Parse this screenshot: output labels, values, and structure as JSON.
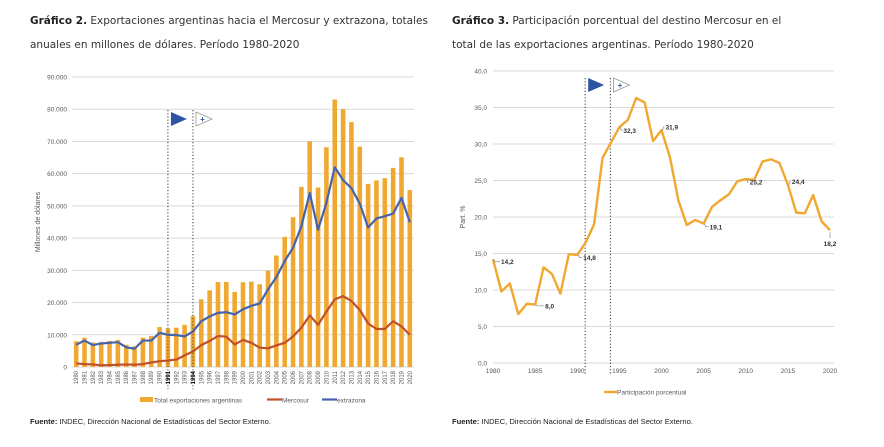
{
  "chart2": {
    "caption_bold": "Gráfico 2.",
    "caption_rest": " Exportaciones argentinas hacia el  Mercosur y extrazona, totales anuales en millones de dólares. Período 1980-2020",
    "source_bold": "Fuente:",
    "source_rest": " INDEC, Dirección Nacional de Estadísticas del Sector Externo.",
    "markers": [
      {
        "name": "mercosur-start-marker-1991",
        "year": 1991,
        "style": "filled-triangle",
        "color": "#2e55a5"
      },
      {
        "name": "mercosur-start-marker-1994",
        "year": 1994,
        "style": "outline-triangle-plus",
        "color": "#2e55a5"
      }
    ]
  },
  "chart3": {
    "caption_bold": "Gráfico 3.",
    "caption_rest": " Participación porcentual del destino Mercosur en el total de las exportaciones argentinas. Período 1980-2020",
    "source_bold": "Fuente:",
    "source_rest": " INDEC, Dirección Nacional de Estadísticas del Sector Externo.",
    "markers": [
      {
        "name": "mercosur-start-marker-1991",
        "year": 1991,
        "style": "filled-triangle",
        "color": "#2e55a5"
      },
      {
        "name": "mercosur-start-marker-1994",
        "year": 1994,
        "style": "outline-triangle-plus",
        "color": "#2e55a5"
      }
    ]
  },
  "chart_data": [
    {
      "type": "bar",
      "title": "Exportaciones argentinas hacia el Mercosur y extrazona, totales anuales en millones de dólares. Período 1980-2020",
      "xlabel": "",
      "ylabel": "Millones de dólares",
      "ylim": [
        0,
        90000
      ],
      "yticks": [
        0,
        10000,
        20000,
        30000,
        40000,
        50000,
        60000,
        70000,
        80000,
        90000
      ],
      "ytick_labels": [
        "0",
        "10.000",
        "20.000",
        "30.000",
        "40.000",
        "50.000",
        "60.000",
        "70.000",
        "80.000",
        "90.000"
      ],
      "grid": true,
      "legend_position": "bottom",
      "highlighted_categories": [
        "1991",
        "1994"
      ],
      "categories": [
        "1980",
        "1981",
        "1982",
        "1983",
        "1984",
        "1985",
        "1986",
        "1987",
        "1988",
        "1989",
        "1990",
        "1991",
        "1992",
        "1993",
        "1994",
        "1995",
        "1996",
        "1997",
        "1998",
        "1999",
        "2000",
        "2001",
        "2002",
        "2003",
        "2004",
        "2005",
        "2006",
        "2007",
        "2008",
        "2009",
        "2010",
        "2011",
        "2012",
        "2013",
        "2014",
        "2015",
        "2016",
        "2017",
        "2018",
        "2019",
        "2020"
      ],
      "series": [
        {
          "name": "Total exportaciones argentinas",
          "kind": "bar",
          "color": "#f0a830",
          "values": [
            8000,
            9100,
            7600,
            7800,
            8100,
            8400,
            6900,
            6400,
            9100,
            9600,
            12400,
            12000,
            12200,
            13100,
            15800,
            21000,
            23800,
            26400,
            26400,
            23300,
            26300,
            26500,
            25700,
            29900,
            34600,
            40400,
            46500,
            55900,
            70000,
            55700,
            68200,
            83000,
            80000,
            76000,
            68400,
            56800,
            57900,
            58600,
            61800,
            65100,
            54900
          ]
        },
        {
          "name": "Mercosur",
          "kind": "line",
          "color": "#c0502a",
          "values": [
            1100,
            900,
            800,
            500,
            600,
            700,
            800,
            700,
            900,
            1400,
            1800,
            2000,
            2300,
            3600,
            4800,
            6800,
            8100,
            9600,
            9400,
            7000,
            8400,
            7500,
            6000,
            5800,
            6700,
            7500,
            9500,
            12200,
            16000,
            13100,
            17200,
            21000,
            22000,
            20500,
            17700,
            13500,
            11800,
            11800,
            14200,
            12600,
            10000
          ]
        },
        {
          "name": "extrazona",
          "kind": "line",
          "color": "#4464ae",
          "values": [
            6900,
            8200,
            6800,
            7300,
            7500,
            7700,
            6100,
            5700,
            8200,
            8200,
            10600,
            10000,
            9900,
            9500,
            11000,
            14200,
            15700,
            16800,
            17000,
            16300,
            17900,
            19000,
            19700,
            24100,
            27900,
            32900,
            37000,
            43700,
            54000,
            42600,
            51000,
            62000,
            58000,
            55500,
            50700,
            43300,
            46100,
            46800,
            47600,
            52500,
            44900
          ]
        }
      ]
    },
    {
      "type": "line",
      "title": "Participación porcentual del destino Mercosur en el total de las exportaciones argentinas. Período 1980-2020",
      "xlabel": "",
      "ylabel": "Part. %",
      "ylim": [
        0,
        40
      ],
      "xlim": [
        1980,
        2020
      ],
      "yticks": [
        0,
        5,
        10,
        15,
        20,
        25,
        30,
        35,
        40
      ],
      "ytick_labels": [
        "0,0",
        "5,0",
        "10,0",
        "15,0",
        "20,0",
        "25,0",
        "30,0",
        "35,0",
        "40,0"
      ],
      "xticks": [
        1980,
        1985,
        1990,
        1995,
        2000,
        2005,
        2010,
        2015,
        2020
      ],
      "grid": true,
      "legend_position": "bottom",
      "x": [
        1980,
        1981,
        1982,
        1983,
        1984,
        1985,
        1986,
        1987,
        1988,
        1989,
        1990,
        1991,
        1992,
        1993,
        1994,
        1995,
        1996,
        1997,
        1998,
        1999,
        2000,
        2001,
        2002,
        2003,
        2004,
        2005,
        2006,
        2007,
        2008,
        2009,
        2010,
        2011,
        2012,
        2013,
        2014,
        2015,
        2016,
        2017,
        2018,
        2019,
        2020
      ],
      "series": [
        {
          "name": "Participación porcentual",
          "color": "#f0a830",
          "values": [
            14.2,
            9.8,
            10.9,
            6.7,
            8.1,
            8.0,
            13.1,
            12.2,
            9.5,
            14.9,
            14.8,
            16.5,
            19.0,
            28.1,
            30.2,
            32.3,
            33.3,
            36.3,
            35.7,
            30.4,
            31.9,
            28.2,
            22.3,
            18.9,
            19.6,
            19.1,
            21.4,
            22.3,
            23.1,
            24.9,
            25.2,
            25.1,
            27.6,
            27.9,
            27.4,
            24.4,
            20.6,
            20.5,
            23.0,
            19.4,
            18.2
          ]
        }
      ],
      "annotations": [
        {
          "x": 1980,
          "label": "14,2"
        },
        {
          "x": 1985,
          "label": "8,0"
        },
        {
          "x": 1990,
          "label": "14,8"
        },
        {
          "x": 1995,
          "label": "32,3"
        },
        {
          "x": 2000,
          "label": "31,9"
        },
        {
          "x": 2005,
          "label": "19,1"
        },
        {
          "x": 2010,
          "label": "25,2"
        },
        {
          "x": 2015,
          "label": "24,4"
        },
        {
          "x": 2020,
          "label": "18,2"
        }
      ]
    }
  ]
}
